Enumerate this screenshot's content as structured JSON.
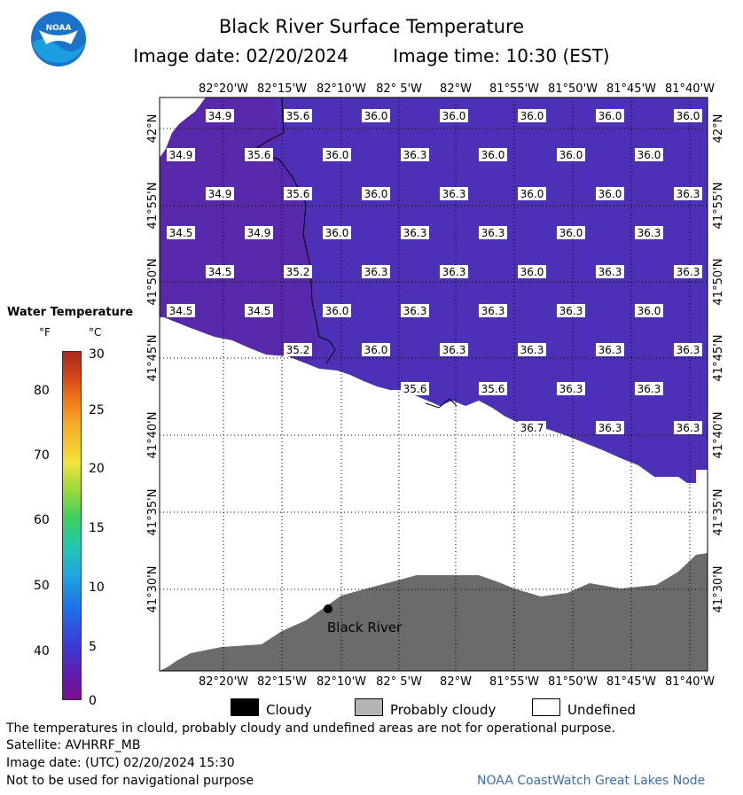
{
  "header": {
    "title": "Black River Surface Temperature",
    "image_date": "Image date: 02/20/2024",
    "image_time": "Image time: 10:30 (EST)"
  },
  "logo": {
    "text": "NOAA",
    "icon": "noaa-logo-icon"
  },
  "legend_scale": {
    "title": "Water Temperature",
    "unit_f": "°F",
    "unit_c": "°C",
    "f_ticks": [
      "80",
      "70",
      "60",
      "50",
      "40"
    ],
    "c_ticks": [
      "30",
      "25",
      "20",
      "15",
      "10",
      "5",
      "0"
    ]
  },
  "axes": {
    "lon_labels": [
      "82°20'W",
      "82°15'W",
      "82°10'W",
      "82° 5'W",
      "82°W",
      "81°55'W",
      "81°50'W",
      "81°45'W",
      "81°40'W"
    ],
    "lat_labels": [
      "42°N",
      "41°55'N",
      "41°50'N",
      "41°45'N",
      "41°40'N",
      "41°35'N",
      "41°30'N"
    ]
  },
  "temperatures": [
    [
      "34.9",
      "35.6",
      "36.0",
      "36.0",
      "36.0",
      "36.0",
      "36.0"
    ],
    [
      "34.9",
      "35.6",
      "36.0",
      "36.3",
      "36.0",
      "36.0",
      "36.0"
    ],
    [
      "34.9",
      "35.6",
      "36.0",
      "36.3",
      "36.0",
      "36.0",
      "36.3"
    ],
    [
      "34.5",
      "34.9",
      "36.0",
      "36.3",
      "36.3",
      "36.0",
      "36.3"
    ],
    [
      "34.5",
      "35.2",
      "36.3",
      "36.3",
      "36.0",
      "36.3",
      "36.3"
    ],
    [
      "34.5",
      "34.5",
      "36.0",
      "36.3",
      "36.3",
      "36.3",
      "36.0"
    ],
    [
      "35.2",
      "36.0",
      "36.3",
      "36.3",
      "36.3",
      "36.3"
    ],
    [
      "35.6",
      "35.6",
      "36.3",
      "36.3"
    ],
    [
      "36.7",
      "36.3",
      "36.3"
    ]
  ],
  "place": {
    "name": "Black River"
  },
  "legend": {
    "cloudy": "Cloudy",
    "probably_cloudy": "Probably cloudy",
    "undefined": "Undefined"
  },
  "footer": {
    "disclaimer": "The temperatures in clould, probably cloudy and undefined areas are not for operational purpose.",
    "satellite": "Satellite: AVHRRF_MB",
    "utc_date": "Image date: (UTC) 02/20/2024  15:30",
    "nav_warning": "Not to be used for navigational purpose",
    "credit": "NOAA CoastWatch Great Lakes Node"
  },
  "colors": {
    "water_west": "#5a2aa8",
    "water_east": "#4a32b8",
    "land": "#6b6b6b",
    "cloudy": "#000000",
    "probably_cloudy": "#b4b4b4",
    "undefined": "#ffffff",
    "credit": "#3a6fb0"
  }
}
